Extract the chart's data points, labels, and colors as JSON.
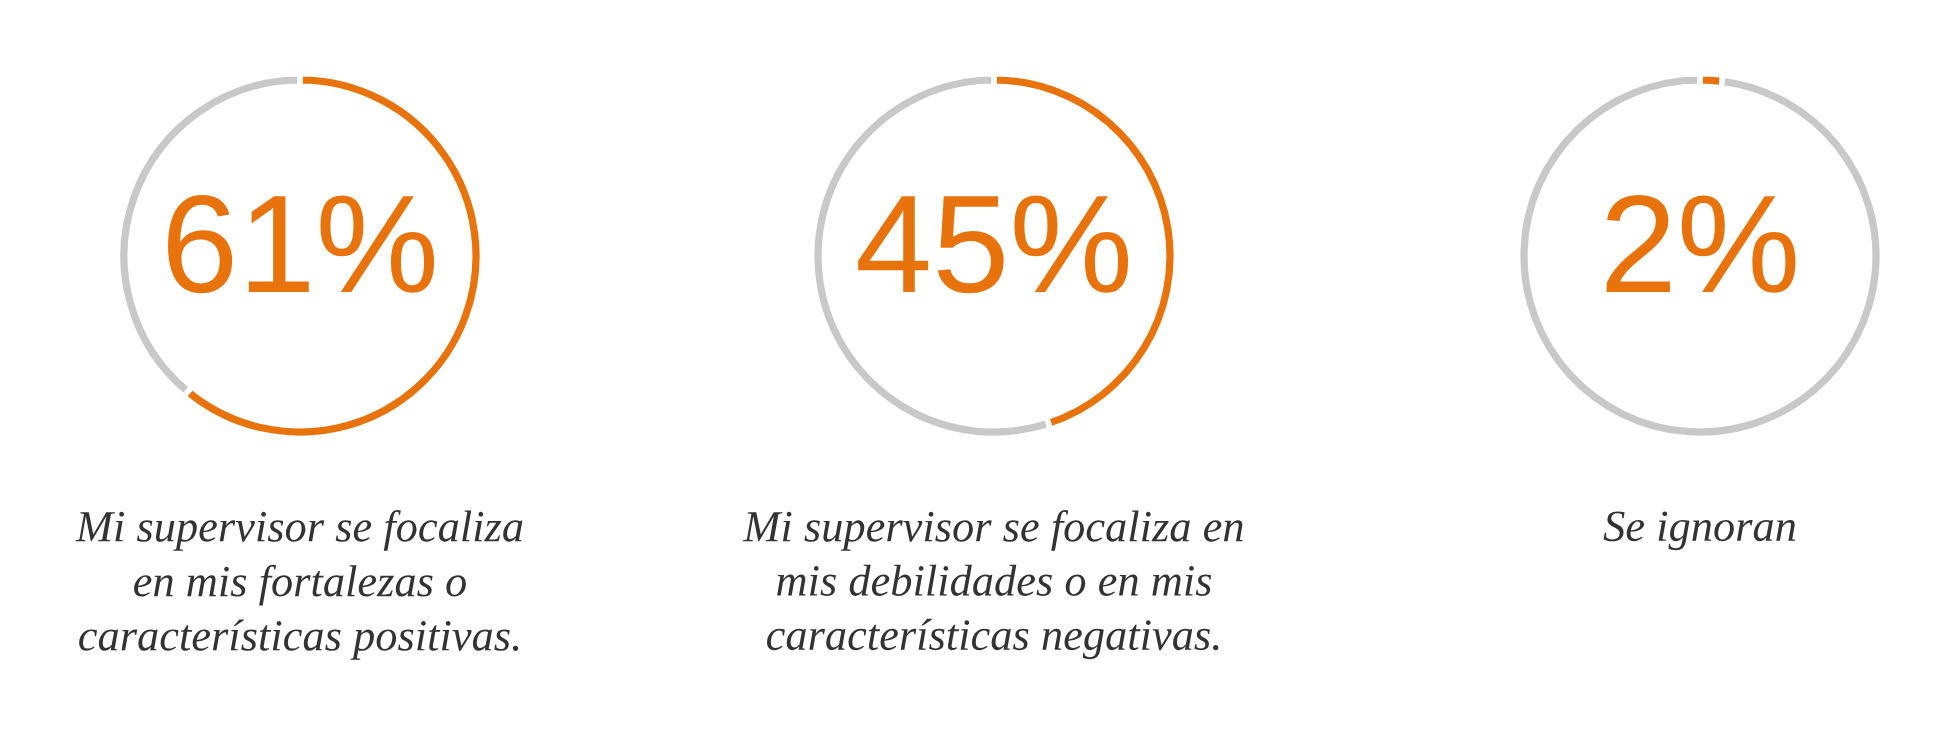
{
  "chart_data": [
    {
      "type": "donut",
      "title": "Mi supervisor se focaliza\nen mis fortalezas o\ncaracterísticas positivas.",
      "categories": [
        null,
        null
      ],
      "values": [
        61,
        39
      ],
      "colors": [
        "#e8730c",
        "#c8c8c8"
      ],
      "value_labels": [
        "61%",
        null
      ]
    },
    {
      "type": "donut",
      "title": "Mi supervisor se focaliza en\nmis debilidades o en mis\ncaracterísticas negativas.",
      "categories": [
        null,
        null
      ],
      "values": [
        45,
        55
      ],
      "colors": [
        "#e8730c",
        "#c8c8c8"
      ],
      "value_labels": [
        "45%",
        null
      ]
    },
    {
      "type": "donut",
      "title": "Se ignoran",
      "categories": [
        null,
        null
      ],
      "values": [
        2,
        98
      ],
      "colors": [
        "#e8730c",
        "#c8c8c8"
      ],
      "value_labels": [
        "2%",
        null
      ]
    }
  ]
}
